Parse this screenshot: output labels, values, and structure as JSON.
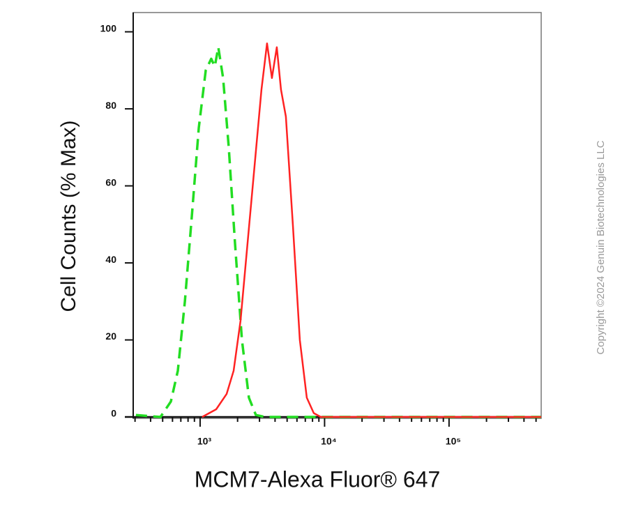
{
  "chart_data": {
    "type": "line",
    "xlabel": "MCM7-Alexa Fluor® 647",
    "ylabel": "Cell Counts (% Max)",
    "watermark": "Copyright ©2024 Genuin Biotechnologies LLC",
    "xscale": "log",
    "xlim": [
      290,
      550000
    ],
    "ylim": [
      0,
      105
    ],
    "xticks": [
      {
        "value": 1000,
        "label": "10³"
      },
      {
        "value": 10000,
        "label": "10⁴"
      },
      {
        "value": 100000,
        "label": "10⁵"
      }
    ],
    "xminorticks": [
      300,
      400,
      500,
      600,
      700,
      800,
      900,
      2000,
      3000,
      4000,
      5000,
      6000,
      7000,
      8000,
      9000,
      20000,
      30000,
      40000,
      50000,
      60000,
      70000,
      80000,
      90000,
      200000,
      300000,
      400000,
      500000
    ],
    "yticks": [
      0,
      20,
      40,
      60,
      80,
      100
    ],
    "series": [
      {
        "color": "#22dd22",
        "dashed": true,
        "x": [
          305,
          480,
          582,
          662,
          754,
          857,
          975,
          1109,
          1229,
          1312,
          1399,
          1530,
          1698,
          1907,
          2168,
          2466,
          2806,
          3320,
          15600,
          550000
        ],
        "values": [
          0.5,
          0,
          4,
          12,
          30,
          52,
          75,
          90,
          93,
          91,
          96,
          88,
          70,
          45,
          20,
          5,
          0.5,
          0,
          0,
          0
        ]
      },
      {
        "color": "#ff2222",
        "dashed": false,
        "x": [
          1039,
          1346,
          1633,
          1858,
          2113,
          2404,
          2735,
          3112,
          3451,
          3777,
          4131,
          4467,
          4887,
          5559,
          6324,
          7194,
          8184,
          9310,
          550000
        ],
        "values": [
          0,
          2,
          6,
          12,
          25,
          45,
          65,
          85,
          97,
          88,
          96,
          85,
          78,
          50,
          20,
          5,
          1,
          0,
          0
        ]
      }
    ]
  }
}
